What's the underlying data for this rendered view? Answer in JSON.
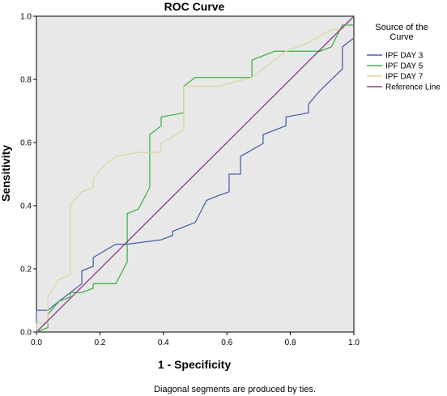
{
  "chart_data": {
    "type": "line",
    "title": "ROC Curve",
    "xlabel": "1 - Specificity",
    "ylabel": "Sensitivity",
    "xlim": [
      0,
      1
    ],
    "ylim": [
      0,
      1
    ],
    "x_ticks": [
      "0.0",
      "0.2",
      "0.4",
      "0.6",
      "0.8",
      "1.0"
    ],
    "y_ticks": [
      "0.0",
      "0.2",
      "0.4",
      "0.6",
      "0.8",
      "1.0"
    ],
    "legend": {
      "title_lines": [
        "Source of the",
        "Curve"
      ],
      "position": "right"
    },
    "footnote": "Diagonal segments are produced by ties.",
    "plot_background": "#e8e8e8",
    "series": [
      {
        "name": "IPF DAY 3",
        "color": "#4a64ad",
        "x": [
          0,
          0,
          0.036,
          0.036,
          0.071,
          0.107,
          0.143,
          0.143,
          0.179,
          0.179,
          0.25,
          0.286,
          0.393,
          0.429,
          0.429,
          0.5,
          0.536,
          0.571,
          0.607,
          0.607,
          0.643,
          0.643,
          0.714,
          0.714,
          0.786,
          0.786,
          0.857,
          0.857,
          0.893,
          0.964,
          0.964,
          1
        ],
        "y": [
          0,
          0.069,
          0.069,
          0.069,
          0.097,
          0.125,
          0.153,
          0.194,
          0.208,
          0.236,
          0.278,
          0.278,
          0.292,
          0.306,
          0.319,
          0.347,
          0.417,
          0.431,
          0.444,
          0.5,
          0.5,
          0.556,
          0.597,
          0.625,
          0.653,
          0.681,
          0.694,
          0.722,
          0.764,
          0.833,
          0.903,
          0.931
        ]
      },
      {
        "name": "IPF DAY 5",
        "color": "#44b34e",
        "x": [
          0,
          0.036,
          0.036,
          0.071,
          0.107,
          0.107,
          0.143,
          0.179,
          0.179,
          0.25,
          0.286,
          0.286,
          0.321,
          0.357,
          0.357,
          0.393,
          0.393,
          0.464,
          0.464,
          0.5,
          0.5,
          0.679,
          0.679,
          0.75,
          0.893,
          0.929,
          0.964,
          1
        ],
        "y": [
          0,
          0.014,
          0.056,
          0.097,
          0.111,
          0.125,
          0.125,
          0.139,
          0.153,
          0.153,
          0.222,
          0.375,
          0.389,
          0.458,
          0.625,
          0.653,
          0.681,
          0.694,
          0.778,
          0.806,
          0.806,
          0.806,
          0.861,
          0.889,
          0.889,
          0.903,
          0.972,
          0.972
        ]
      },
      {
        "name": "IPF DAY 7",
        "color": "#ddd5a3",
        "x": [
          0,
          0,
          0.036,
          0.036,
          0.071,
          0.107,
          0.107,
          0.143,
          0.179,
          0.179,
          0.214,
          0.25,
          0.321,
          0.393,
          0.393,
          0.464,
          0.464,
          0.5,
          0.571,
          0.679,
          0.75,
          0.786,
          0.857,
          0.929,
          0.964,
          1
        ],
        "y": [
          0,
          0.028,
          0.028,
          0.111,
          0.167,
          0.181,
          0.403,
          0.444,
          0.458,
          0.486,
          0.528,
          0.556,
          0.569,
          0.569,
          0.597,
          0.639,
          0.778,
          0.778,
          0.778,
          0.806,
          0.861,
          0.889,
          0.917,
          0.958,
          0.958,
          1
        ]
      },
      {
        "name": "Reference Line",
        "color": "#8b3c8c",
        "x": [
          0,
          1
        ],
        "y": [
          0,
          1
        ]
      }
    ]
  }
}
